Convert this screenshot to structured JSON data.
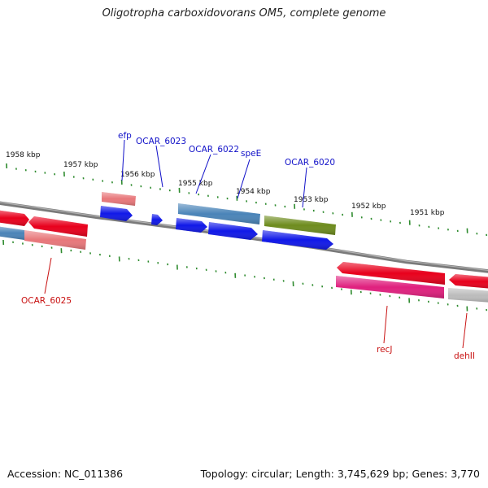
{
  "title": "Oligotropha carboxidovorans OM5, complete genome",
  "footer": {
    "accession": "Accession: NC_011386",
    "summary": "Topology: circular; Length: 3,745,629 bp; Genes: 3,770"
  },
  "scale_labels": [
    "1958 kbp",
    "1957 kbp",
    "1956 kbp",
    "1955 kbp",
    "1954 kbp",
    "1953 kbp",
    "1952 kbp",
    "1951 kbp"
  ],
  "colors": {
    "backbone": "#808080",
    "tick": "#2e8b2e",
    "label_top": "#1010c8",
    "label_bottom": "#c81010",
    "red": "#e8001c",
    "salmon": "#e8777a",
    "blue": "#1018e8",
    "steelblue": "#4a84b8",
    "olive": "#6e8c1e",
    "magenta": "#e0207e",
    "gray": "#bcbcbc"
  },
  "gene_labels_top": [
    "efp",
    "OCAR_6023",
    "OCAR_6022",
    "speE",
    "OCAR_6020"
  ],
  "gene_labels_bottom": [
    "OCAR_6025",
    "recJ",
    "dehII"
  ]
}
